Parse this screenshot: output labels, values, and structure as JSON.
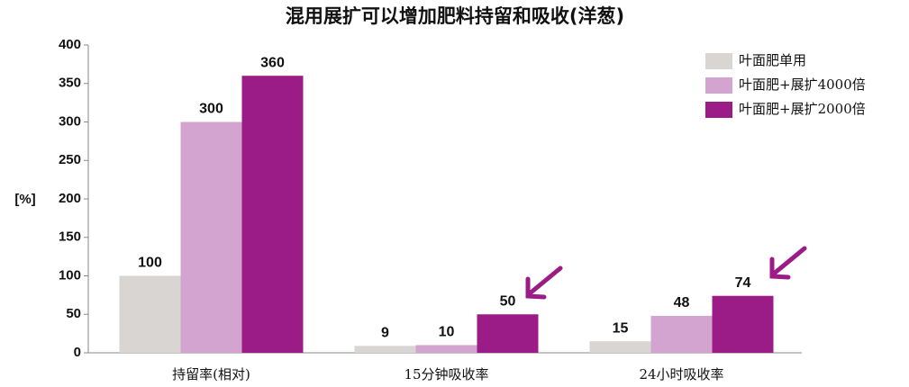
{
  "chart_data": {
    "type": "bar",
    "title": "混用展扩可以增加肥料持留和吸收(洋葱)",
    "y_label": "[%]",
    "categories": [
      "持留率(相对)",
      "15分钟吸收率",
      "24小时吸收率"
    ],
    "series": [
      {
        "name": "叶面肥单用",
        "color": "#d9d5d2",
        "values": [
          100,
          9,
          15
        ]
      },
      {
        "name": "叶面肥+展扩4000倍",
        "color": "#d4a4d0",
        "values": [
          300,
          10,
          48
        ]
      },
      {
        "name": "叶面肥+展扩2000倍",
        "color": "#9b1c87",
        "values": [
          360,
          50,
          74
        ]
      }
    ],
    "ylim": [
      0,
      400
    ],
    "yticks": [
      0,
      50,
      100,
      150,
      200,
      250,
      300,
      350,
      400
    ],
    "legend": "top-right"
  }
}
